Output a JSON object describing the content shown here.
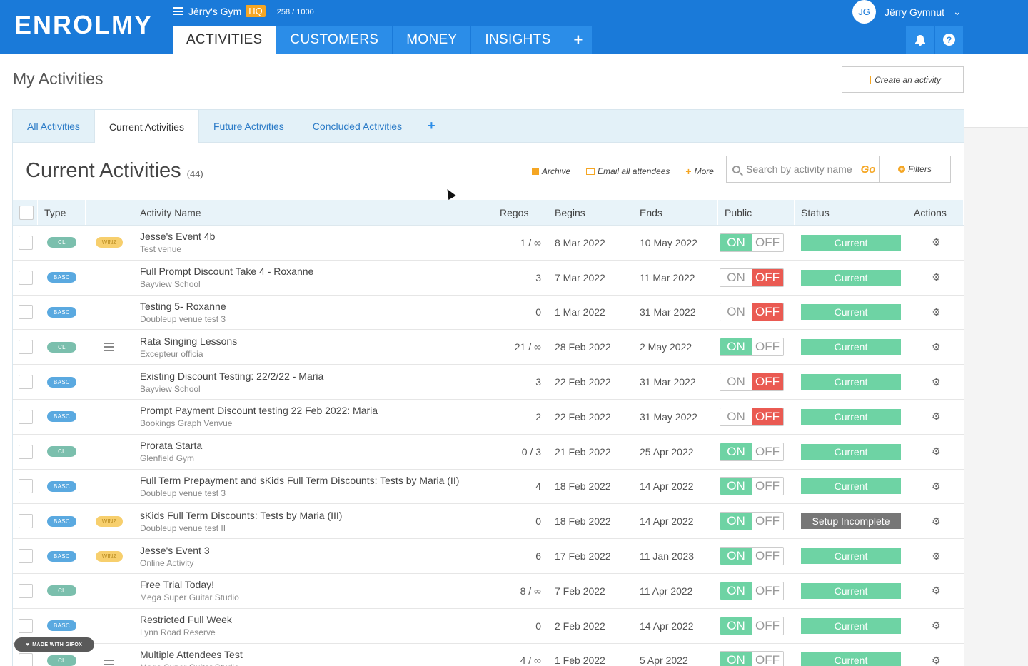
{
  "header": {
    "logo": "ENROLMY",
    "gym_name": "Jêrry's Gym",
    "hq_badge": "HQ",
    "quota": "258 / 1000",
    "user_initials": "JG",
    "user_name": "Jêrry Gymnut",
    "nav": [
      "ACTIVITIES",
      "CUSTOMERS",
      "MONEY",
      "INSIGHTS"
    ],
    "nav_plus": "+",
    "help": "?"
  },
  "page": {
    "title": "My Activities",
    "create_label": "Create an activity"
  },
  "subtabs": [
    "All Activities",
    "Current Activities",
    "Future Activities",
    "Concluded Activities"
  ],
  "subtab_plus": "+",
  "section": {
    "title": "Current Activities",
    "count": "(44)",
    "archive": "Archive",
    "email": "Email all attendees",
    "more": "More",
    "search_placeholder": "Search by activity name",
    "go": "Go",
    "filters": "Filters"
  },
  "table": {
    "headers": [
      "Type",
      "",
      "Activity Name",
      "Regos",
      "Begins",
      "Ends",
      "Public",
      "Status",
      "Actions"
    ],
    "on_label": "ON",
    "off_label": "OFF",
    "rows": [
      {
        "type": "CL",
        "badge": "WINZ",
        "name": "Jesse's Event 4b",
        "venue": "Test venue",
        "regos": "1 / ∞",
        "begins": "8 Mar 2022",
        "ends": "10 May 2022",
        "public": "on",
        "status": "Current"
      },
      {
        "type": "BASC",
        "badge": "",
        "name": "Full Prompt Discount Take 4 - Roxanne",
        "venue": "Bayview School",
        "regos": "3",
        "begins": "7 Mar 2022",
        "ends": "11 Mar 2022",
        "public": "off",
        "status": "Current"
      },
      {
        "type": "BASC",
        "badge": "",
        "name": "Testing 5- Roxanne",
        "venue": "Doubleup venue test 3",
        "regos": "0",
        "begins": "1 Mar 2022",
        "ends": "31 Mar 2022",
        "public": "off",
        "status": "Current"
      },
      {
        "type": "CL",
        "badge": "card",
        "name": "Rata Singing Lessons",
        "venue": "Excepteur officia",
        "regos": "21 / ∞",
        "begins": "28 Feb 2022",
        "ends": "2 May 2022",
        "public": "on",
        "status": "Current"
      },
      {
        "type": "BASC",
        "badge": "",
        "name": "Existing Discount Testing: 22/2/22 - Maria",
        "venue": "Bayview School",
        "regos": "3",
        "begins": "22 Feb 2022",
        "ends": "31 Mar 2022",
        "public": "off",
        "status": "Current"
      },
      {
        "type": "BASC",
        "badge": "",
        "name": "Prompt Payment Discount testing 22 Feb 2022: Maria",
        "venue": "Bookings Graph Venvue",
        "regos": "2",
        "begins": "22 Feb 2022",
        "ends": "31 May 2022",
        "public": "off",
        "status": "Current"
      },
      {
        "type": "CL",
        "badge": "",
        "name": "Prorata Starta",
        "venue": "Glenfield Gym",
        "regos": "0 / 3",
        "begins": "21 Feb 2022",
        "ends": "25 Apr 2022",
        "public": "on",
        "status": "Current"
      },
      {
        "type": "BASC",
        "badge": "",
        "name": "Full Term Prepayment and sKids Full Term Discounts: Tests by Maria (II)",
        "venue": "Doubleup venue test 3",
        "regos": "4",
        "begins": "18 Feb 2022",
        "ends": "14 Apr 2022",
        "public": "on",
        "status": "Current"
      },
      {
        "type": "BASC",
        "badge": "WINZ",
        "name": "sKids Full Term Discounts: Tests by Maria (III)",
        "venue": "Doubleup venue test II",
        "regos": "0",
        "begins": "18 Feb 2022",
        "ends": "14 Apr 2022",
        "public": "on",
        "status": "Setup Incomplete"
      },
      {
        "type": "BASC",
        "badge": "WINZ",
        "name": "Jesse's Event 3",
        "venue": "Online Activity",
        "regos": "6",
        "begins": "17 Feb 2022",
        "ends": "11 Jan 2023",
        "public": "on",
        "status": "Current"
      },
      {
        "type": "CL",
        "badge": "",
        "name": "Free Trial Today!",
        "venue": "Mega Super Guitar Studio",
        "regos": "8 / ∞",
        "begins": "7 Feb 2022",
        "ends": "11 Apr 2022",
        "public": "on",
        "status": "Current"
      },
      {
        "type": "BASC",
        "badge": "",
        "name": "Restricted Full Week",
        "venue": "Lynn Road Reserve",
        "regos": "0",
        "begins": "2 Feb 2022",
        "ends": "14 Apr 2022",
        "public": "on",
        "status": "Current"
      },
      {
        "type": "CL",
        "badge": "card",
        "name": "Multiple Attendees Test",
        "venue": "Mega Super Guitar Studio",
        "regos": "4 / ∞",
        "begins": "1 Feb 2022",
        "ends": "5 Apr 2022",
        "public": "on",
        "status": "Current"
      }
    ]
  },
  "watermark": "MADE WITH GIFOX",
  "colors": {
    "brand_blue": "#1a7ad9",
    "accent_orange": "#f5a623",
    "on_green": "#6ed3a4",
    "off_red": "#ea5a52",
    "incomplete_grey": "#777777"
  }
}
